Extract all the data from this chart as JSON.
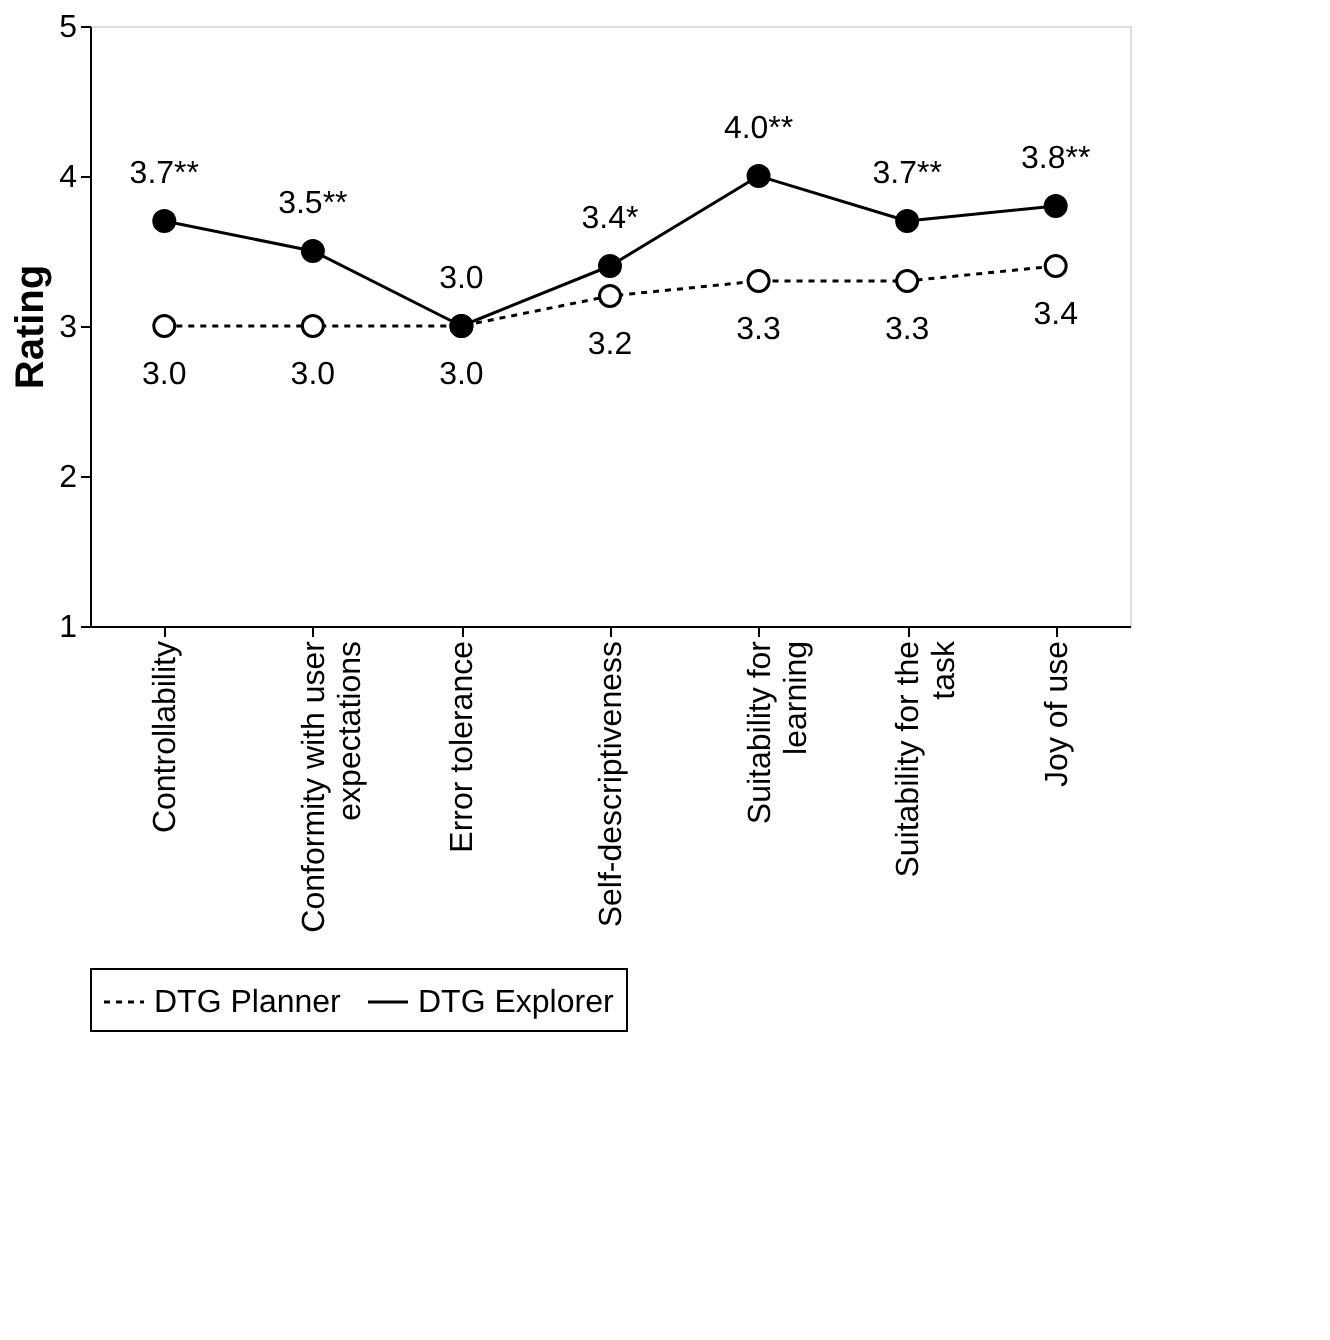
{
  "chart_data": {
    "type": "line",
    "ylabel": "Rating",
    "categories": [
      "Controllability",
      "Conformity with user expectations",
      "Error tolerance",
      "Self-descriptiveness",
      "Suitability for learning",
      "Suitability for the task",
      "Joy of use"
    ],
    "series": [
      {
        "name": "DTG Planner",
        "color": "#000000",
        "line_style": "dotted",
        "values": [
          3.0,
          3.0,
          3.0,
          3.2,
          3.3,
          3.3,
          3.4
        ],
        "value_labels": [
          "3.0",
          "3.0",
          "3.0",
          "3.2",
          "3.3",
          "3.3",
          "3.4"
        ]
      },
      {
        "name": "DTG Explorer",
        "color": "#000000",
        "line_style": "solid",
        "values": [
          3.7,
          3.5,
          3.0,
          3.4,
          4.0,
          3.7,
          3.8
        ],
        "value_labels": [
          "3.7**",
          "3.5**",
          "3.0",
          "3.4*",
          "4.0**",
          "3.7**",
          "3.8**"
        ]
      }
    ],
    "ylim": [
      1,
      5
    ],
    "yticks": [
      1,
      2,
      3,
      4,
      5
    ],
    "grid": false,
    "marker": "circle",
    "legend": "bottom"
  }
}
